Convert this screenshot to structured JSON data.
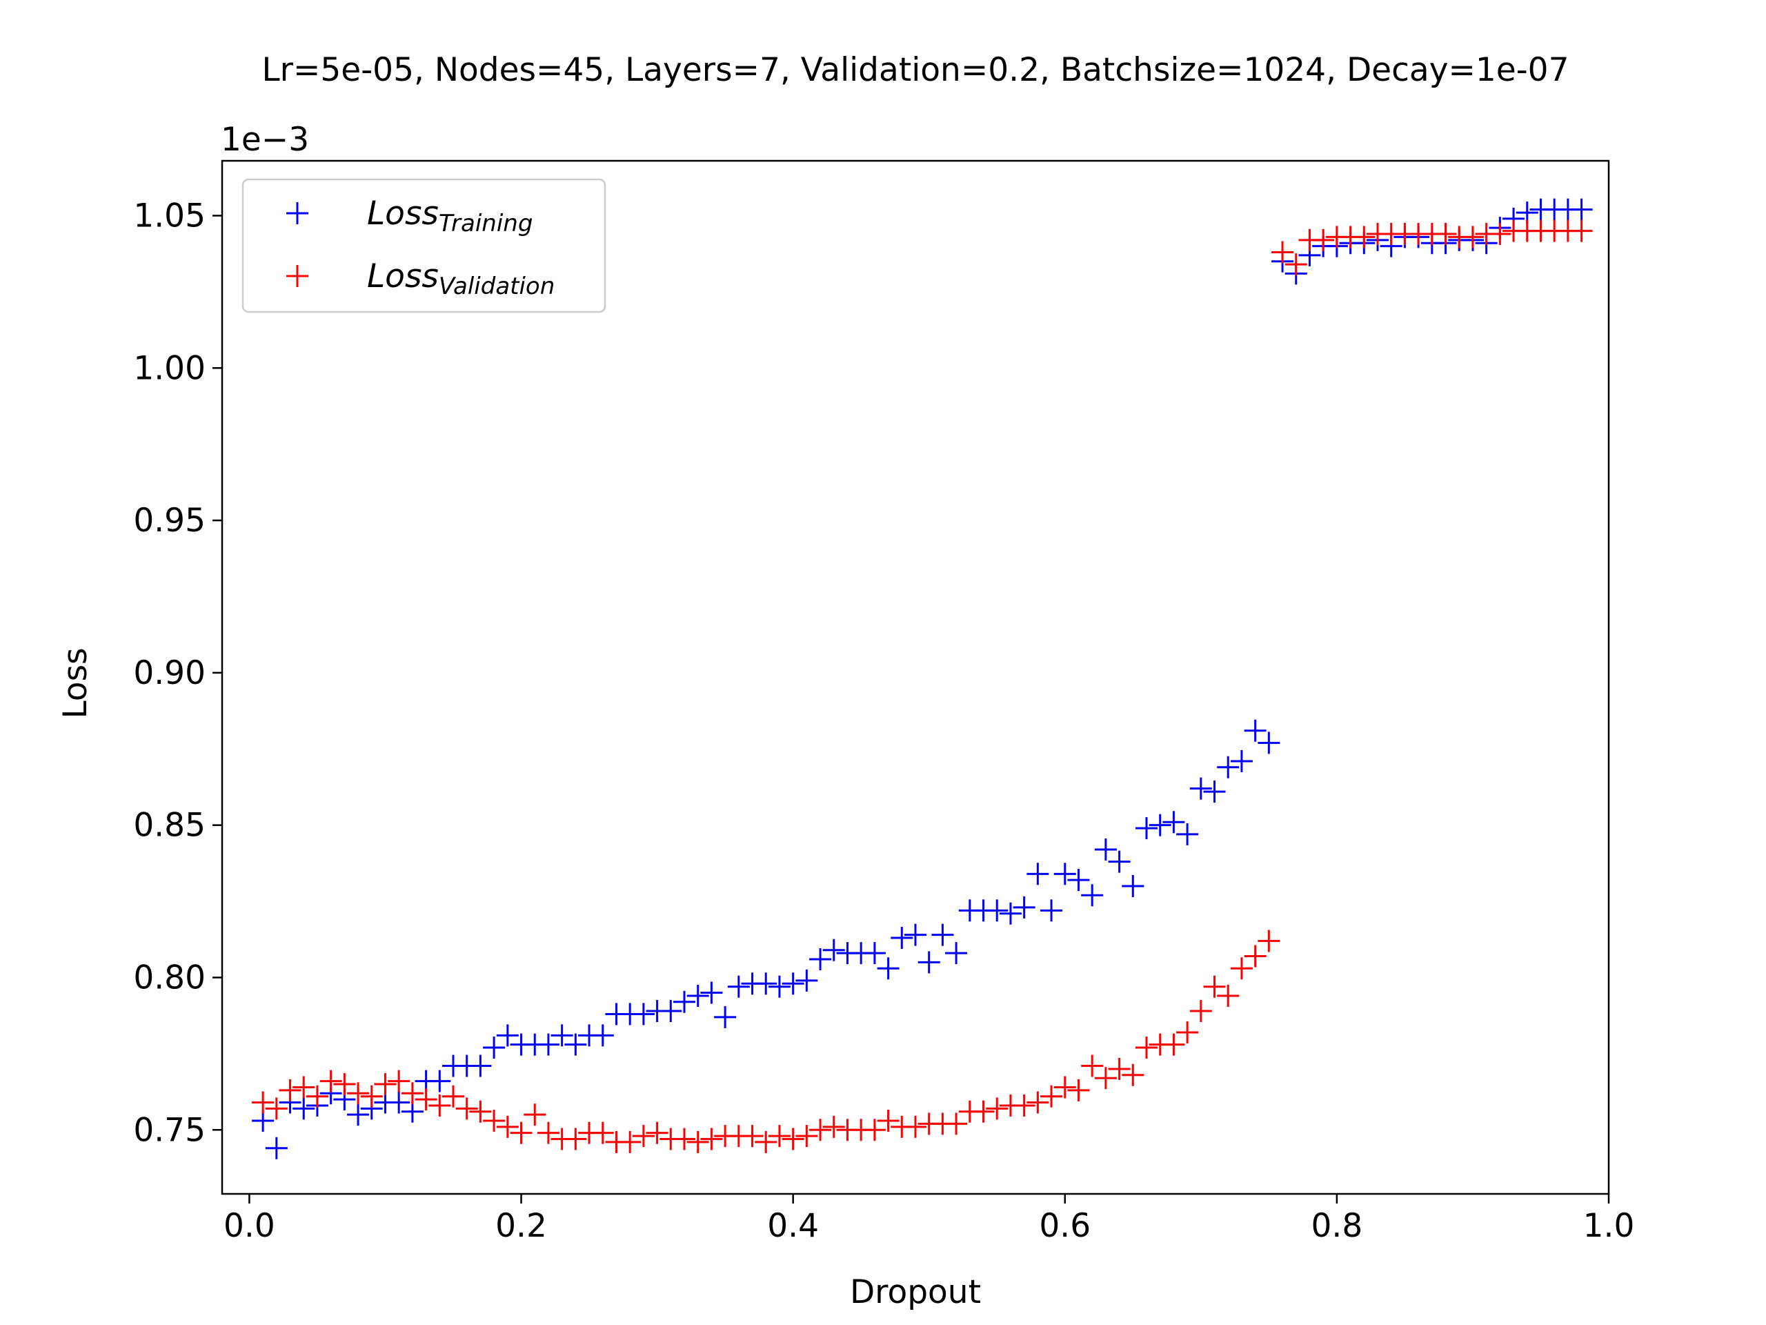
{
  "chart_data": {
    "type": "scatter",
    "title": "Lr=5e-05, Nodes=45, Layers=7, Validation=0.2, Batchsize=1024, Decay=1e-07",
    "xlabel": "Dropout",
    "ylabel": "Loss",
    "y_offset_label": "1e−3",
    "xlim": [
      -0.02,
      1.0
    ],
    "ylim": [
      0.729,
      1.068
    ],
    "x_ticks": [
      0.0,
      0.2,
      0.4,
      0.6,
      0.8,
      1.0
    ],
    "x_tick_labels": [
      "0.0",
      "0.2",
      "0.4",
      "0.6",
      "0.8",
      "1.0"
    ],
    "y_ticks": [
      0.75,
      0.8,
      0.85,
      0.9,
      0.95,
      1.0,
      1.05
    ],
    "y_tick_labels": [
      "0.75",
      "0.80",
      "0.85",
      "0.90",
      "0.95",
      "1.00",
      "1.05"
    ],
    "grid": false,
    "legend_position": "top-left",
    "series": [
      {
        "label_main": "Loss",
        "label_sub": "Training",
        "color": "#0000ff",
        "marker": "+",
        "points": [
          [
            0.01,
            0.753
          ],
          [
            0.02,
            0.744
          ],
          [
            0.03,
            0.759
          ],
          [
            0.04,
            0.757
          ],
          [
            0.05,
            0.758
          ],
          [
            0.06,
            0.762
          ],
          [
            0.07,
            0.76
          ],
          [
            0.08,
            0.755
          ],
          [
            0.09,
            0.757
          ],
          [
            0.1,
            0.759
          ],
          [
            0.11,
            0.759
          ],
          [
            0.12,
            0.756
          ],
          [
            0.13,
            0.766
          ],
          [
            0.14,
            0.766
          ],
          [
            0.15,
            0.771
          ],
          [
            0.16,
            0.771
          ],
          [
            0.17,
            0.771
          ],
          [
            0.18,
            0.777
          ],
          [
            0.19,
            0.781
          ],
          [
            0.2,
            0.778
          ],
          [
            0.21,
            0.778
          ],
          [
            0.22,
            0.778
          ],
          [
            0.23,
            0.781
          ],
          [
            0.24,
            0.778
          ],
          [
            0.25,
            0.781
          ],
          [
            0.26,
            0.781
          ],
          [
            0.27,
            0.788
          ],
          [
            0.28,
            0.788
          ],
          [
            0.29,
            0.788
          ],
          [
            0.3,
            0.789
          ],
          [
            0.31,
            0.789
          ],
          [
            0.32,
            0.792
          ],
          [
            0.33,
            0.794
          ],
          [
            0.34,
            0.795
          ],
          [
            0.35,
            0.787
          ],
          [
            0.36,
            0.797
          ],
          [
            0.37,
            0.798
          ],
          [
            0.38,
            0.798
          ],
          [
            0.39,
            0.797
          ],
          [
            0.4,
            0.798
          ],
          [
            0.41,
            0.799
          ],
          [
            0.42,
            0.806
          ],
          [
            0.43,
            0.809
          ],
          [
            0.44,
            0.808
          ],
          [
            0.45,
            0.808
          ],
          [
            0.46,
            0.808
          ],
          [
            0.47,
            0.803
          ],
          [
            0.48,
            0.813
          ],
          [
            0.49,
            0.814
          ],
          [
            0.5,
            0.805
          ],
          [
            0.51,
            0.814
          ],
          [
            0.52,
            0.808
          ],
          [
            0.53,
            0.822
          ],
          [
            0.54,
            0.822
          ],
          [
            0.55,
            0.822
          ],
          [
            0.56,
            0.821
          ],
          [
            0.57,
            0.823
          ],
          [
            0.58,
            0.834
          ],
          [
            0.59,
            0.822
          ],
          [
            0.6,
            0.834
          ],
          [
            0.61,
            0.832
          ],
          [
            0.62,
            0.827
          ],
          [
            0.63,
            0.842
          ],
          [
            0.64,
            0.838
          ],
          [
            0.65,
            0.83
          ],
          [
            0.66,
            0.849
          ],
          [
            0.67,
            0.85
          ],
          [
            0.68,
            0.851
          ],
          [
            0.69,
            0.847
          ],
          [
            0.7,
            0.862
          ],
          [
            0.71,
            0.861
          ],
          [
            0.72,
            0.869
          ],
          [
            0.73,
            0.871
          ],
          [
            0.74,
            0.881
          ],
          [
            0.75,
            0.877
          ],
          [
            0.76,
            1.035
          ],
          [
            0.77,
            1.031
          ],
          [
            0.78,
            1.037
          ],
          [
            0.79,
            1.04
          ],
          [
            0.8,
            1.04
          ],
          [
            0.81,
            1.041
          ],
          [
            0.82,
            1.041
          ],
          [
            0.83,
            1.042
          ],
          [
            0.84,
            1.04
          ],
          [
            0.85,
            1.043
          ],
          [
            0.86,
            1.043
          ],
          [
            0.87,
            1.041
          ],
          [
            0.88,
            1.041
          ],
          [
            0.89,
            1.042
          ],
          [
            0.9,
            1.042
          ],
          [
            0.91,
            1.041
          ],
          [
            0.92,
            1.046
          ],
          [
            0.93,
            1.049
          ],
          [
            0.94,
            1.051
          ],
          [
            0.95,
            1.052
          ],
          [
            0.96,
            1.052
          ],
          [
            0.97,
            1.052
          ],
          [
            0.98,
            1.052
          ]
        ]
      },
      {
        "label_main": "Loss",
        "label_sub": "Validation",
        "color": "#ff0000",
        "marker": "+",
        "points": [
          [
            0.01,
            0.759
          ],
          [
            0.02,
            0.757
          ],
          [
            0.03,
            0.763
          ],
          [
            0.04,
            0.764
          ],
          [
            0.05,
            0.761
          ],
          [
            0.06,
            0.766
          ],
          [
            0.07,
            0.765
          ],
          [
            0.08,
            0.762
          ],
          [
            0.09,
            0.761
          ],
          [
            0.1,
            0.765
          ],
          [
            0.11,
            0.766
          ],
          [
            0.12,
            0.762
          ],
          [
            0.13,
            0.76
          ],
          [
            0.14,
            0.758
          ],
          [
            0.15,
            0.761
          ],
          [
            0.16,
            0.757
          ],
          [
            0.17,
            0.756
          ],
          [
            0.18,
            0.753
          ],
          [
            0.19,
            0.751
          ],
          [
            0.2,
            0.749
          ],
          [
            0.21,
            0.755
          ],
          [
            0.22,
            0.749
          ],
          [
            0.23,
            0.747
          ],
          [
            0.24,
            0.747
          ],
          [
            0.25,
            0.749
          ],
          [
            0.26,
            0.749
          ],
          [
            0.27,
            0.746
          ],
          [
            0.28,
            0.746
          ],
          [
            0.29,
            0.748
          ],
          [
            0.3,
            0.749
          ],
          [
            0.31,
            0.747
          ],
          [
            0.32,
            0.747
          ],
          [
            0.33,
            0.746
          ],
          [
            0.34,
            0.747
          ],
          [
            0.35,
            0.748
          ],
          [
            0.36,
            0.748
          ],
          [
            0.37,
            0.748
          ],
          [
            0.38,
            0.746
          ],
          [
            0.39,
            0.748
          ],
          [
            0.4,
            0.747
          ],
          [
            0.41,
            0.748
          ],
          [
            0.42,
            0.75
          ],
          [
            0.43,
            0.751
          ],
          [
            0.44,
            0.75
          ],
          [
            0.45,
            0.75
          ],
          [
            0.46,
            0.75
          ],
          [
            0.47,
            0.753
          ],
          [
            0.48,
            0.751
          ],
          [
            0.49,
            0.751
          ],
          [
            0.5,
            0.752
          ],
          [
            0.51,
            0.752
          ],
          [
            0.52,
            0.752
          ],
          [
            0.53,
            0.756
          ],
          [
            0.54,
            0.756
          ],
          [
            0.55,
            0.757
          ],
          [
            0.56,
            0.758
          ],
          [
            0.57,
            0.758
          ],
          [
            0.58,
            0.759
          ],
          [
            0.59,
            0.761
          ],
          [
            0.6,
            0.764
          ],
          [
            0.61,
            0.763
          ],
          [
            0.62,
            0.771
          ],
          [
            0.63,
            0.767
          ],
          [
            0.64,
            0.77
          ],
          [
            0.65,
            0.768
          ],
          [
            0.66,
            0.777
          ],
          [
            0.67,
            0.778
          ],
          [
            0.68,
            0.778
          ],
          [
            0.69,
            0.782
          ],
          [
            0.7,
            0.789
          ],
          [
            0.71,
            0.797
          ],
          [
            0.72,
            0.794
          ],
          [
            0.73,
            0.803
          ],
          [
            0.74,
            0.807
          ],
          [
            0.75,
            0.812
          ],
          [
            0.76,
            1.038
          ],
          [
            0.77,
            1.034
          ],
          [
            0.78,
            1.042
          ],
          [
            0.79,
            1.042
          ],
          [
            0.8,
            1.043
          ],
          [
            0.81,
            1.043
          ],
          [
            0.82,
            1.043
          ],
          [
            0.83,
            1.044
          ],
          [
            0.84,
            1.044
          ],
          [
            0.85,
            1.044
          ],
          [
            0.86,
            1.044
          ],
          [
            0.87,
            1.044
          ],
          [
            0.88,
            1.044
          ],
          [
            0.89,
            1.043
          ],
          [
            0.9,
            1.043
          ],
          [
            0.91,
            1.044
          ],
          [
            0.92,
            1.044
          ],
          [
            0.93,
            1.045
          ],
          [
            0.94,
            1.045
          ],
          [
            0.95,
            1.045
          ],
          [
            0.96,
            1.045
          ],
          [
            0.97,
            1.045
          ],
          [
            0.98,
            1.045
          ]
        ]
      }
    ]
  }
}
